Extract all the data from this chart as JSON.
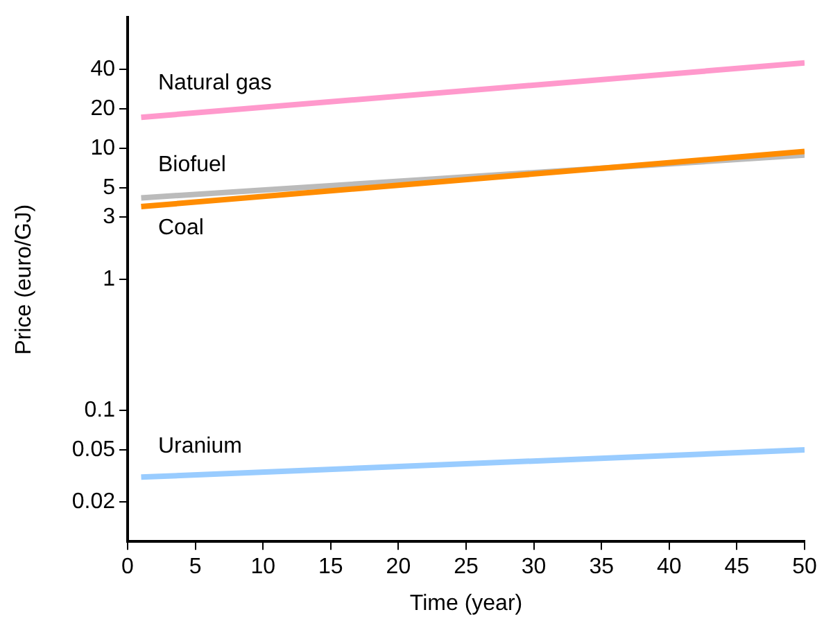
{
  "chart_data": {
    "type": "line",
    "xlabel": "Time (year)",
    "ylabel": "Price (euro/GJ)",
    "log": "y",
    "grid": false,
    "legend": false,
    "marker": "none",
    "line_style": "solid",
    "xlim": [
      0,
      50
    ],
    "xticks": [
      0,
      5,
      10,
      15,
      20,
      25,
      30,
      35,
      40,
      45,
      50
    ],
    "ylim": [
      0.01,
      100
    ],
    "yticks": [
      0.02,
      0.05,
      0.1,
      1,
      3,
      5,
      10,
      20,
      40
    ],
    "x": [
      1,
      50
    ],
    "series": [
      {
        "name": "Natural gas",
        "color": "#ff99cc",
        "values": [
          17.3,
          45
        ]
      },
      {
        "name": "Coal",
        "color": "#ff8c00",
        "values": [
          3.6,
          9.5
        ]
      },
      {
        "name": "Biofuel",
        "color": "#bbbbbb",
        "values": [
          4.2,
          8.9
        ]
      },
      {
        "name": "Uranium",
        "color": "#99ccff",
        "values": [
          0.031,
          0.05
        ]
      }
    ]
  }
}
